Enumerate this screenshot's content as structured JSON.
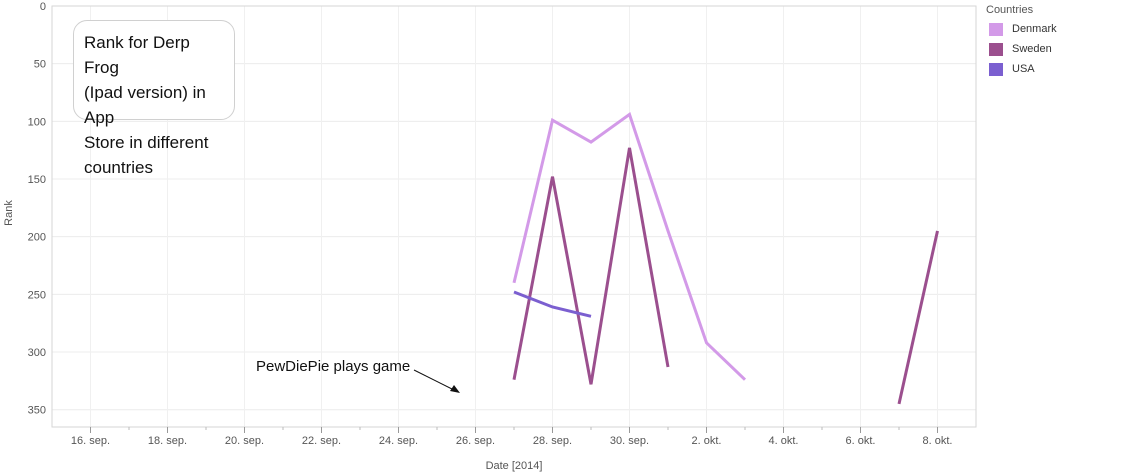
{
  "chart_data": {
    "type": "line",
    "title": "Rank for Derp Frog (Ipad version) in App Store in different countries",
    "xlabel": "Date [2014]",
    "ylabel": "Rank",
    "y_reversed": true,
    "ylim": [
      0,
      365
    ],
    "xlim": [
      "2014-09-15",
      "2014-10-09"
    ],
    "yticks": [
      0,
      50,
      100,
      150,
      200,
      250,
      300,
      350
    ],
    "xticks": [
      {
        "date": "2014-09-16",
        "label": "16. sep."
      },
      {
        "date": "2014-09-18",
        "label": "18. sep."
      },
      {
        "date": "2014-09-20",
        "label": "20. sep."
      },
      {
        "date": "2014-09-22",
        "label": "22. sep."
      },
      {
        "date": "2014-09-24",
        "label": "24. sep."
      },
      {
        "date": "2014-09-26",
        "label": "26. sep."
      },
      {
        "date": "2014-09-28",
        "label": "28. sep."
      },
      {
        "date": "2014-09-30",
        "label": "30. sep."
      },
      {
        "date": "2014-10-02",
        "label": "2. okt."
      },
      {
        "date": "2014-10-04",
        "label": "4. okt."
      },
      {
        "date": "2014-10-06",
        "label": "6. okt."
      },
      {
        "date": "2014-10-08",
        "label": "8. okt."
      }
    ],
    "grid": true,
    "legend": {
      "title": "Countries",
      "placement": "right"
    },
    "series": [
      {
        "name": "Denmark",
        "color": "#d39ae8",
        "segments": [
          [
            {
              "x": "2014-09-27",
              "y": 240
            },
            {
              "x": "2014-09-28",
              "y": 99
            },
            {
              "x": "2014-09-29",
              "y": 118
            },
            {
              "x": "2014-09-30",
              "y": 94
            },
            {
              "x": "2014-10-01",
              "y": 195
            },
            {
              "x": "2014-10-02",
              "y": 292
            },
            {
              "x": "2014-10-03",
              "y": 324
            }
          ]
        ]
      },
      {
        "name": "Sweden",
        "color": "#9b4f8e",
        "segments": [
          [
            {
              "x": "2014-09-27",
              "y": 324
            },
            {
              "x": "2014-09-28",
              "y": 148
            },
            {
              "x": "2014-09-29",
              "y": 328
            },
            {
              "x": "2014-09-30",
              "y": 123
            },
            {
              "x": "2014-10-01",
              "y": 313
            }
          ],
          [
            {
              "x": "2014-10-07",
              "y": 345
            },
            {
              "x": "2014-10-08",
              "y": 195
            }
          ]
        ]
      },
      {
        "name": "USA",
        "color": "#7b5fd0",
        "segments": [
          [
            {
              "x": "2014-09-27",
              "y": 248
            },
            {
              "x": "2014-09-28",
              "y": 261
            },
            {
              "x": "2014-09-29",
              "y": 269
            }
          ]
        ]
      }
    ],
    "annotations": [
      {
        "text": "PewDiePie plays game"
      }
    ]
  },
  "title_lines": [
    "Rank for Derp Frog",
    "(Ipad version) in App",
    "Store in different",
    "countries"
  ],
  "annotation_text": "PewDiePie plays game",
  "legend_title": "Countries",
  "legend_items": [
    {
      "label": "Denmark",
      "color": "#d39ae8"
    },
    {
      "label": "Sweden",
      "color": "#9b4f8e"
    },
    {
      "label": "USA",
      "color": "#7b5fd0"
    }
  ]
}
